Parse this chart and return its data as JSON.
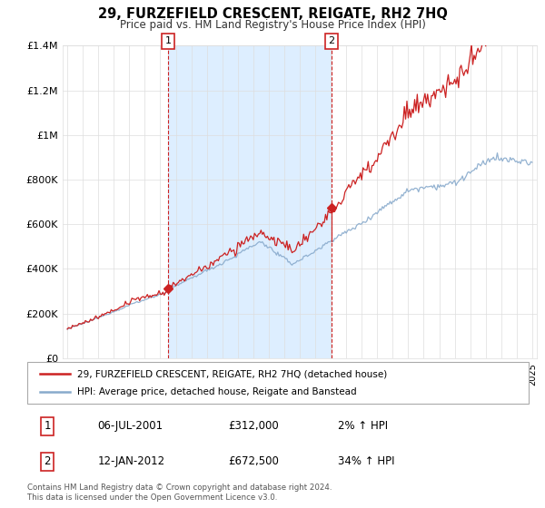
{
  "title": "29, FURZEFIELD CRESCENT, REIGATE, RH2 7HQ",
  "subtitle": "Price paid vs. HM Land Registry's House Price Index (HPI)",
  "legend_line1": "29, FURZEFIELD CRESCENT, REIGATE, RH2 7HQ (detached house)",
  "legend_line2": "HPI: Average price, detached house, Reigate and Banstead",
  "table_row1": [
    "1",
    "06-JUL-2001",
    "£312,000",
    "2% ↑ HPI"
  ],
  "table_row2": [
    "2",
    "12-JAN-2012",
    "£672,500",
    "34% ↑ HPI"
  ],
  "footer": "Contains HM Land Registry data © Crown copyright and database right 2024.\nThis data is licensed under the Open Government Licence v3.0.",
  "sale1_year": 2001.51,
  "sale1_price": 312000,
  "sale2_year": 2012.04,
  "sale2_price": 672500,
  "vline1_year": 2001.51,
  "vline2_year": 2012.04,
  "property_color": "#cc2222",
  "hpi_color": "#88aacc",
  "vline_color": "#cc2222",
  "shade_color": "#ddeeff",
  "ylim": [
    0,
    1400000
  ],
  "yticks": [
    0,
    200000,
    400000,
    600000,
    800000,
    1000000,
    1200000,
    1400000
  ],
  "ytick_labels": [
    "£0",
    "£200K",
    "£400K",
    "£600K",
    "£800K",
    "£1M",
    "£1.2M",
    "£1.4M"
  ],
  "xlim_start": 1994.7,
  "xlim_end": 2025.3,
  "background_color": "#ffffff",
  "grid_color": "#dddddd"
}
